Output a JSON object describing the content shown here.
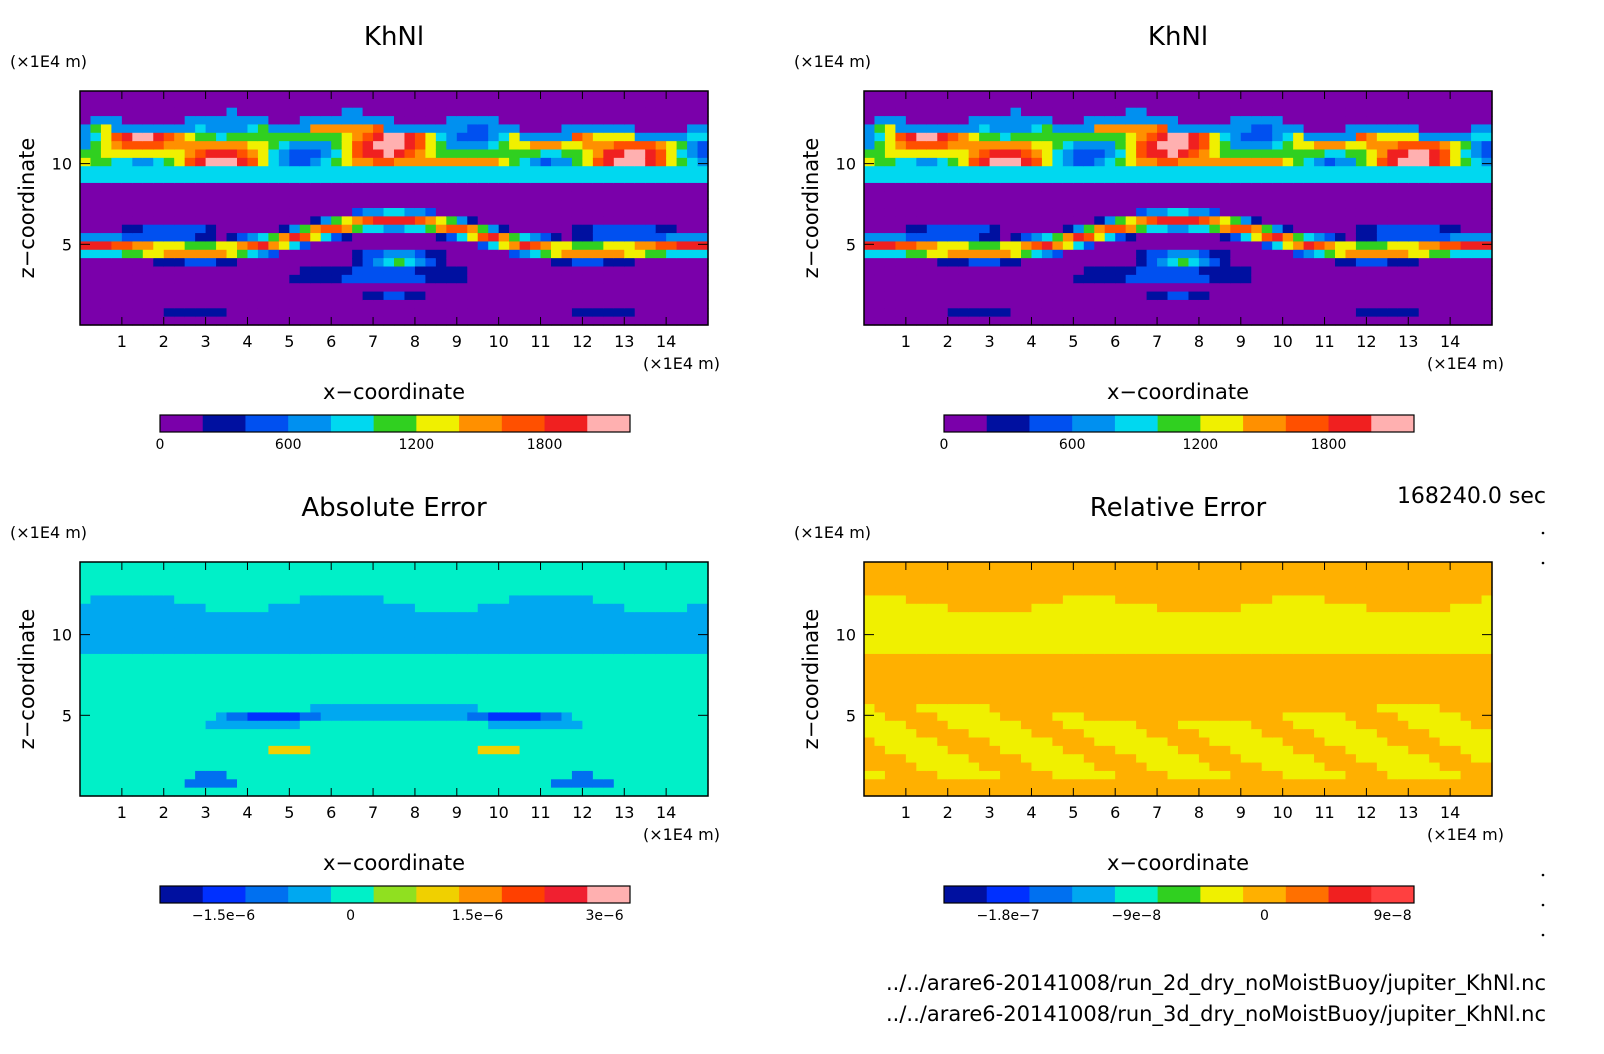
{
  "timestamp": "168240.0 sec",
  "files": [
    "../../arare6-20141008/run_2d_dry_noMoistBuoy/jupiter_KhNl.nc",
    "../../arare6-20141008/run_3d_dry_noMoistBuoy/jupiter_KhNl.nc"
  ],
  "axis": {
    "xlabel": "x−coordinate",
    "ylabel": "z−coordinate",
    "unit": "(×1E4 m)",
    "x_ticks": [
      "1",
      "2",
      "3",
      "4",
      "5",
      "6",
      "7",
      "8",
      "9",
      "10",
      "11",
      "12",
      "13",
      "14"
    ],
    "y_ticks": [
      "5",
      "10"
    ]
  },
  "palettes": {
    "value": [
      "#7a00aa",
      "#0010a0",
      "#0050f0",
      "#0090f0",
      "#00d8f0",
      "#30d020",
      "#f0f000",
      "#ff9000",
      "#ff5000",
      "#f02020",
      "#ffb0b0"
    ],
    "abs": [
      "#0010a0",
      "#0030ff",
      "#0070f0",
      "#00a8f0",
      "#00f0c8",
      "#90e020",
      "#f0d000",
      "#ff9000",
      "#ff4000",
      "#f02030",
      "#ffb0b0"
    ],
    "rel": [
      "#0010a0",
      "#0030ff",
      "#0070f0",
      "#00a8f0",
      "#00f0c8",
      "#30d020",
      "#f0f000",
      "#ffb000",
      "#ff7000",
      "#f02020",
      "#ff4040"
    ]
  },
  "chart_data": [
    {
      "id": "khnl-2d",
      "type": "heatmap",
      "title": "KhNl",
      "xlabel": "x−coordinate",
      "ylabel": "z−coordinate",
      "xlim": [
        0,
        15
      ],
      "ylim": [
        0,
        14.5
      ],
      "colorbar": {
        "min": 0,
        "max": 2200,
        "ticks": [
          {
            "v": 0,
            "l": "0"
          },
          {
            "v": 600,
            "l": "600"
          },
          {
            "v": 1200,
            "l": "1200"
          },
          {
            "v": 1800,
            "l": "1800"
          }
        ]
      }
    },
    {
      "id": "khnl-3d",
      "type": "heatmap",
      "title": "KhNl",
      "xlabel": "x−coordinate",
      "ylabel": "z−coordinate",
      "xlim": [
        0,
        15
      ],
      "ylim": [
        0,
        14.5
      ],
      "colorbar": {
        "min": 0,
        "max": 2200,
        "ticks": [
          {
            "v": 0,
            "l": "0"
          },
          {
            "v": 600,
            "l": "600"
          },
          {
            "v": 1200,
            "l": "1200"
          },
          {
            "v": 1800,
            "l": "1800"
          }
        ]
      }
    },
    {
      "id": "absolute-error",
      "type": "heatmap",
      "title": "Absolute Error",
      "xlabel": "x−coordinate",
      "ylabel": "z−coordinate",
      "xlim": [
        0,
        15
      ],
      "ylim": [
        0,
        14.5
      ],
      "colorbar": {
        "min": -2.25e-06,
        "max": 3.3e-06,
        "ticks": [
          {
            "v": -1.5e-06,
            "l": "−1.5e−6"
          },
          {
            "v": 0,
            "l": "0"
          },
          {
            "v": 1.5e-06,
            "l": "1.5e−6"
          },
          {
            "v": 3e-06,
            "l": "3e−6"
          }
        ]
      }
    },
    {
      "id": "relative-error",
      "type": "heatmap",
      "title": "Relative Error",
      "xlabel": "x−coordinate",
      "ylabel": "z−coordinate",
      "xlim": [
        0,
        15
      ],
      "ylim": [
        0,
        14.5
      ],
      "colorbar": {
        "min": -2.25e-07,
        "max": 1.05e-07,
        "ticks": [
          {
            "v": -1.8e-07,
            "l": "−1.8e−7"
          },
          {
            "v": -9e-08,
            "l": "−9e−8"
          },
          {
            "v": 0,
            "l": "0"
          },
          {
            "v": 9e-08,
            "l": "9e−8"
          }
        ]
      }
    }
  ]
}
